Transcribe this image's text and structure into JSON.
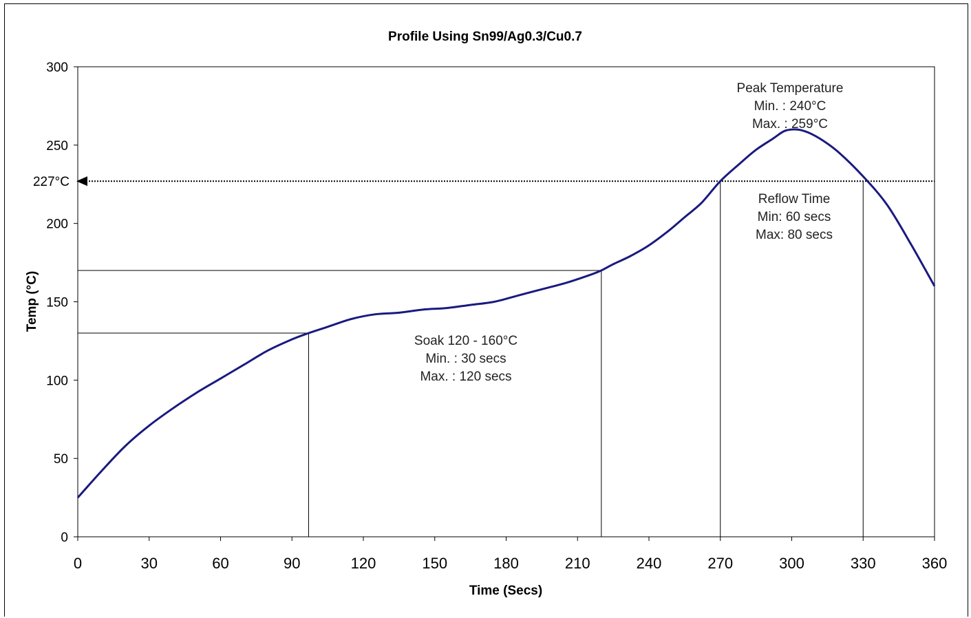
{
  "chart_data": {
    "type": "line",
    "title": "Profile Using Sn99/Ag0.3/Cu0.7",
    "xlabel": "Time (Secs)",
    "ylabel": "Temp (°C)",
    "xlim": [
      0,
      360
    ],
    "ylim": [
      0,
      300
    ],
    "x_ticks": [
      "0",
      "30",
      "60",
      "90",
      "120",
      "150",
      "180",
      "210",
      "240",
      "270",
      "300",
      "330",
      "360"
    ],
    "y_ticks": [
      "0",
      "50",
      "100",
      "150",
      "200",
      "250",
      "300"
    ],
    "grid": false,
    "legend": "none",
    "series": [
      {
        "color": "#1a1a80",
        "x": [
          0,
          10,
          20,
          30,
          40,
          50,
          60,
          70,
          80,
          90,
          97,
          105,
          115,
          125,
          135,
          145,
          155,
          165,
          175,
          185,
          195,
          205,
          215,
          220,
          225,
          232,
          240,
          248,
          255,
          262,
          270,
          278,
          285,
          292,
          297,
          302,
          307,
          313,
          320,
          330,
          340,
          350,
          360
        ],
        "y": [
          25,
          42,
          58,
          71,
          82,
          92,
          101,
          110,
          119,
          126,
          130,
          134,
          139,
          142,
          143,
          145,
          146,
          148,
          150,
          154,
          158,
          162,
          167,
          170,
          174,
          179,
          186,
          195,
          204,
          213,
          227,
          238,
          247,
          254,
          259,
          260,
          258,
          253,
          245,
          230,
          212,
          187,
          160
        ]
      }
    ],
    "reference_lines": {
      "liquidus_label": "227°C",
      "liquidus_y": 227,
      "soak_y_low": 130,
      "soak_y_high": 170,
      "soak_x_start": 97,
      "soak_x_end": 220,
      "reflow_x_start": 270,
      "reflow_x_end": 330
    },
    "annotations": {
      "peak": [
        "Peak Temperature",
        "Min. : 240°C",
        "Max. : 259°C"
      ],
      "reflow": [
        "Reflow Time",
        "Min: 60 secs",
        "Max: 80 secs"
      ],
      "soak": [
        "Soak 120 - 160°C",
        "Min. : 30 secs",
        "Max. : 120 secs"
      ]
    }
  }
}
